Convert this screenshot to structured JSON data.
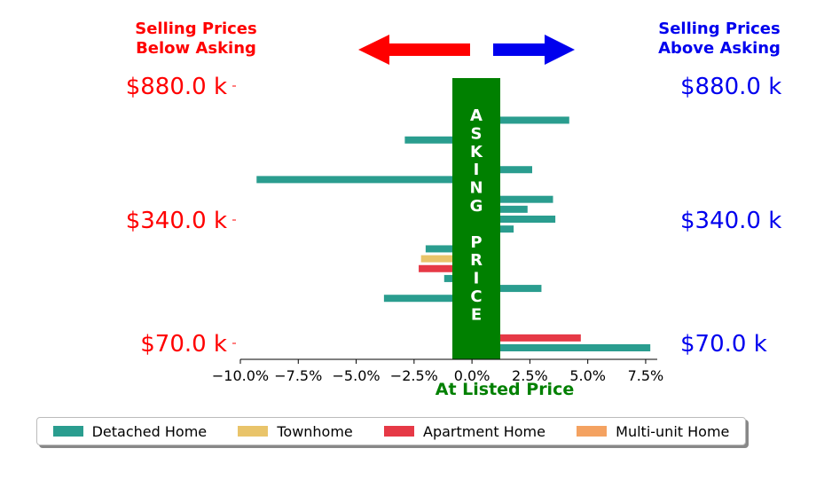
{
  "headers": {
    "left": [
      "Selling Prices",
      "Below Asking"
    ],
    "right": [
      "Selling Prices",
      "Above Asking"
    ],
    "left_color": "#ff0000",
    "right_color": "#0000ee"
  },
  "asking_band": {
    "letters": [
      "A",
      "S",
      "K",
      "I",
      "N",
      "G",
      "",
      "P",
      "R",
      "I",
      "C",
      "E"
    ],
    "color": "#008000"
  },
  "chart_data": {
    "type": "bar",
    "orientation": "horizontal",
    "xlabel": "At Listed Price",
    "xlim": [
      -0.1,
      0.08
    ],
    "xticks": [
      -0.1,
      -0.075,
      -0.05,
      -0.025,
      0.0,
      0.025,
      0.05,
      0.075
    ],
    "xtick_labels": [
      "−10.0%",
      "−7.5%",
      "−5.0%",
      "−2.5%",
      "0.0%",
      "2.5%",
      "5.0%",
      "7.5%"
    ],
    "ytick_labels": [
      "$880.0 k",
      "$340.0 k",
      "$70.0 k"
    ],
    "legend_position": "bottom",
    "series": [
      {
        "name": "Detached Home",
        "color": "#2a9d8f"
      },
      {
        "name": "Townhome",
        "color": "#e9c46a"
      },
      {
        "name": "Apartment Home",
        "color": "#e63946"
      },
      {
        "name": "Multi-unit Home",
        "color": "#f4a261"
      }
    ],
    "bars": [
      {
        "series": 3,
        "value": 0.001
      },
      {
        "series": 0,
        "value": 0.001
      },
      {
        "series": 0,
        "value": 0.001
      },
      {
        "series": 0,
        "value": 0.042
      },
      {
        "series": 0,
        "value": 0.0
      },
      {
        "series": 0,
        "value": -0.029
      },
      {
        "series": 1,
        "value": 0.001
      },
      {
        "series": 0,
        "value": 0.001
      },
      {
        "series": 0,
        "value": 0.026
      },
      {
        "series": 0,
        "value": -0.093
      },
      {
        "series": 0,
        "value": 0.001
      },
      {
        "series": 0,
        "value": 0.035
      },
      {
        "series": 0,
        "value": 0.024
      },
      {
        "series": 0,
        "value": 0.036
      },
      {
        "series": 0,
        "value": 0.018
      },
      {
        "series": 0,
        "value": 0.001
      },
      {
        "series": 0,
        "value": -0.02
      },
      {
        "series": 1,
        "value": -0.022
      },
      {
        "series": 2,
        "value": -0.023
      },
      {
        "series": 0,
        "value": -0.012
      },
      {
        "series": 0,
        "value": 0.03
      },
      {
        "series": 0,
        "value": -0.038
      },
      {
        "series": 1,
        "value": 0.001
      },
      {
        "series": 0,
        "value": 0.001
      },
      {
        "series": 0,
        "value": 0.001
      },
      {
        "series": 2,
        "value": 0.047
      },
      {
        "series": 0,
        "value": 0.077
      }
    ]
  }
}
